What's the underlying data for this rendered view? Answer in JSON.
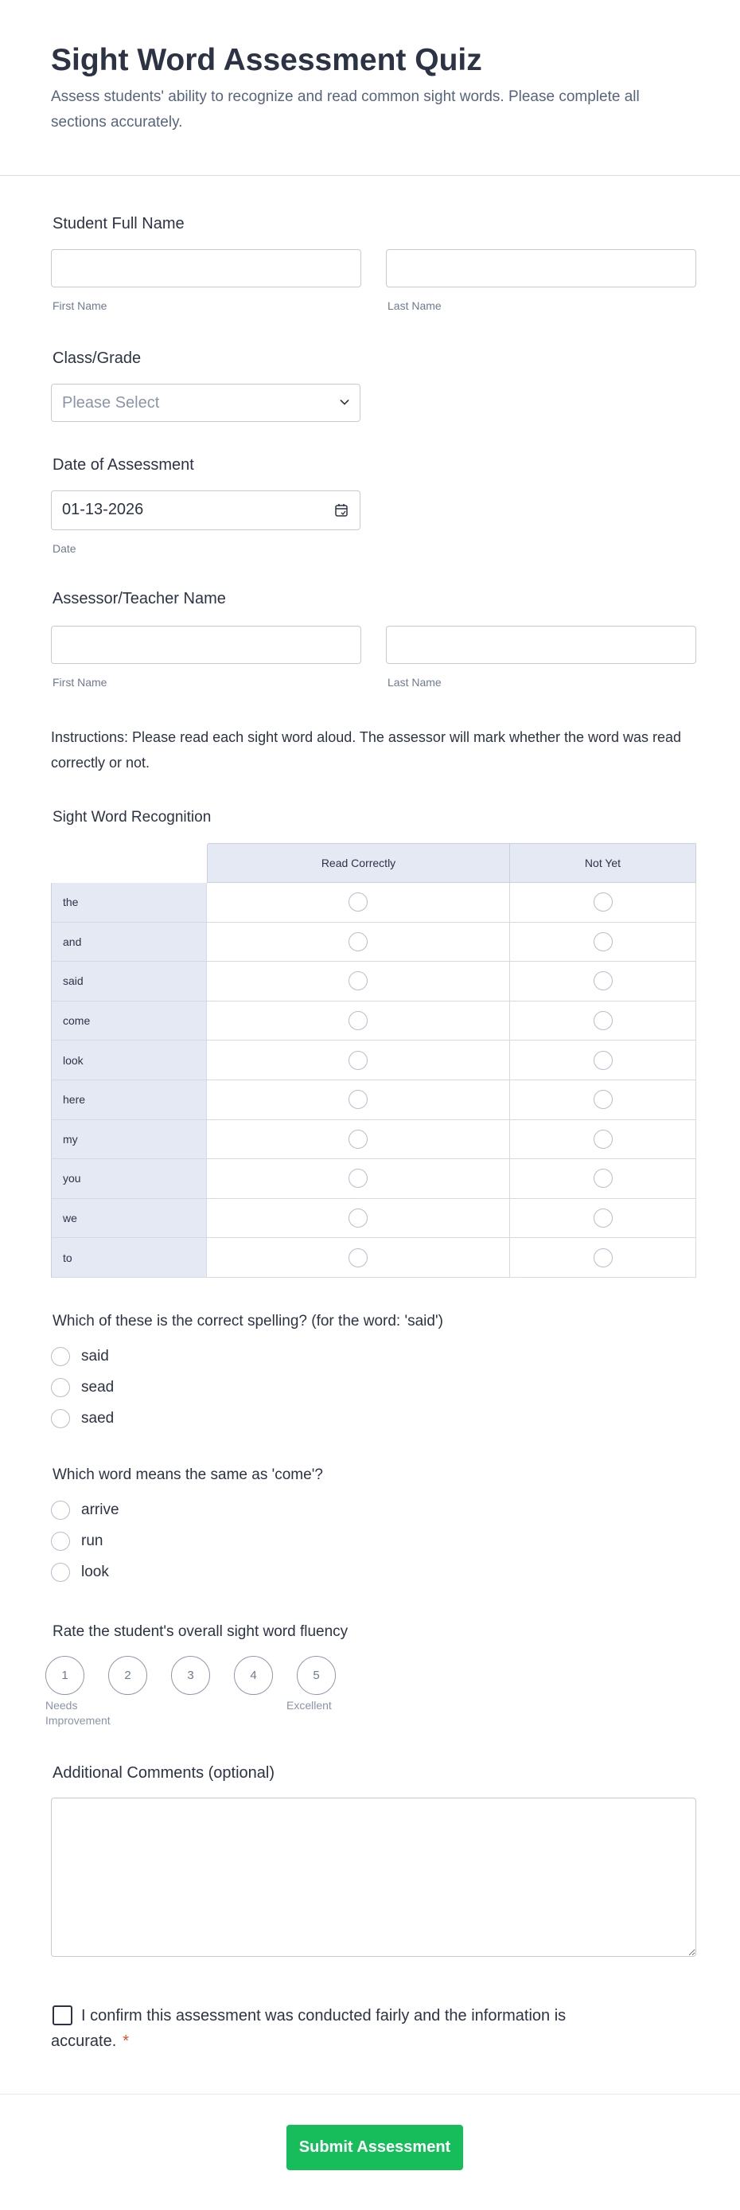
{
  "header": {
    "title": "Sight Word Assessment Quiz",
    "description": "Assess students' ability to recognize and read common sight words. Please complete all sections accurately."
  },
  "student_name": {
    "label": "Student Full Name",
    "first_value": "",
    "last_value": "",
    "first_sublabel": "First Name",
    "last_sublabel": "Last Name"
  },
  "class_grade": {
    "label": "Class/Grade",
    "selected": "Please Select"
  },
  "date": {
    "label": "Date of Assessment",
    "value": "01-13-2026",
    "sublabel": "Date",
    "icon": "calendar-icon"
  },
  "assessor_name": {
    "label": "Assessor/Teacher Name",
    "first_value": "",
    "last_value": "",
    "first_sublabel": "First Name",
    "last_sublabel": "Last Name"
  },
  "instructions": "Instructions: Please read each sight word aloud. The assessor will mark whether the word was read correctly or not.",
  "matrix": {
    "label": "Sight Word Recognition",
    "columns": [
      "Read Correctly",
      "Not Yet"
    ],
    "rows": [
      "the",
      "and",
      "said",
      "come",
      "look",
      "here",
      "my",
      "you",
      "we",
      "to"
    ]
  },
  "q1": {
    "label": "Which of these is the correct spelling? (for the word: 'said')",
    "options": [
      "said",
      "sead",
      "saed"
    ]
  },
  "q2": {
    "label": "Which word means the same as 'come'?",
    "options": [
      "arrive",
      "run",
      "look"
    ]
  },
  "rating": {
    "label": "Rate the student's overall sight word fluency",
    "values": [
      "1",
      "2",
      "3",
      "4",
      "5"
    ],
    "low_label": "Needs Improvement",
    "high_label": "Excellent"
  },
  "comments": {
    "label": "Additional Comments (optional)",
    "value": ""
  },
  "confirm": {
    "label": "I confirm this assessment was conducted fairly and the information is accurate.",
    "required_mark": "*"
  },
  "submit_label": "Submit Assessment",
  "colors": {
    "accent": "#18bd5b",
    "text": "#2c3345",
    "required": "#d9541e",
    "table_header": "#e5e9f4"
  }
}
